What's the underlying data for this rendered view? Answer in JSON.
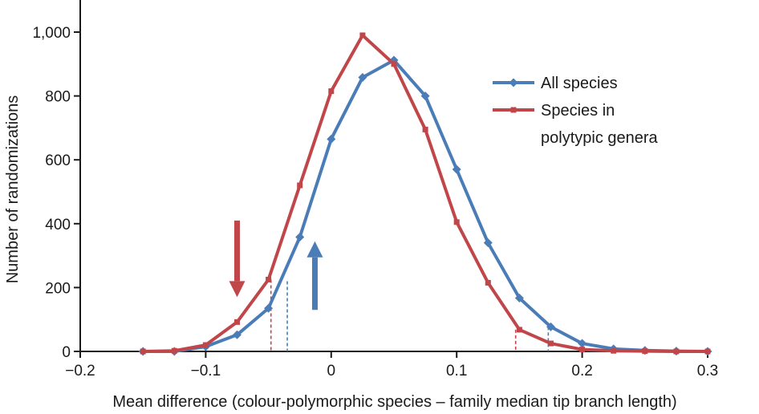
{
  "chart_data": {
    "type": "line",
    "title": "",
    "xlabel": "Mean difference (colour-polymorphic species – family median tip branch length)",
    "ylabel": "Number of randomizations",
    "xlim": [
      -0.2,
      0.3
    ],
    "ylim": [
      0,
      1000
    ],
    "x_ticks": [
      -0.2,
      -0.1,
      0,
      0.1,
      0.2,
      0.3
    ],
    "x_tick_labels": [
      "−0.2",
      "−0.1",
      "0",
      "0.1",
      "0.2",
      "0.3"
    ],
    "y_ticks": [
      0,
      200,
      400,
      600,
      800,
      1000
    ],
    "y_tick_labels": [
      "0",
      "200",
      "400",
      "600",
      "800",
      "1,000"
    ],
    "grid": false,
    "legend_position": "right",
    "series": [
      {
        "name": "All species",
        "color": "#4a7cb8",
        "marker": "diamond",
        "x": [
          -0.15,
          -0.125,
          -0.1,
          -0.075,
          -0.05,
          -0.025,
          0,
          0.025,
          0.05,
          0.075,
          0.1,
          0.125,
          0.15,
          0.175,
          0.2,
          0.225,
          0.25,
          0.275,
          0.3
        ],
        "values": [
          0,
          0,
          15,
          52,
          135,
          358,
          665,
          858,
          912,
          800,
          570,
          340,
          167,
          77,
          25,
          8,
          3,
          1,
          0
        ]
      },
      {
        "name": "Species in polytypic genera",
        "legend_lines": [
          "Species in",
          "polytypic genera"
        ],
        "color": "#c0464a",
        "marker": "square",
        "x": [
          -0.15,
          -0.125,
          -0.1,
          -0.075,
          -0.05,
          -0.025,
          0,
          0.025,
          0.05,
          0.075,
          0.1,
          0.125,
          0.15,
          0.175,
          0.2,
          0.225,
          0.25,
          0.275,
          0.3
        ],
        "values": [
          0,
          2,
          20,
          92,
          225,
          520,
          815,
          990,
          900,
          695,
          405,
          215,
          68,
          25,
          6,
          2,
          1,
          0,
          0
        ]
      }
    ],
    "cutoff_lines": [
      {
        "series": "Species in polytypic genera",
        "x": -0.048,
        "value": 225,
        "color": "#c0464a"
      },
      {
        "series": "All species",
        "x": -0.035,
        "value": 220,
        "color": "#4a7cb8"
      },
      {
        "series": "Species in polytypic genera",
        "x": 0.147,
        "value": 68,
        "color": "#c0464a"
      },
      {
        "series": "All species",
        "x": 0.173,
        "value": 77,
        "color": "#4a7cb8"
      }
    ],
    "annotations": [
      {
        "type": "arrow",
        "direction": "down",
        "x": -0.075,
        "y_from": 410,
        "y_to": 170,
        "color": "#c0464a"
      },
      {
        "type": "arrow",
        "direction": "up",
        "x": -0.013,
        "y_from": 130,
        "y_to": 345,
        "color": "#4a7cb8"
      }
    ]
  }
}
